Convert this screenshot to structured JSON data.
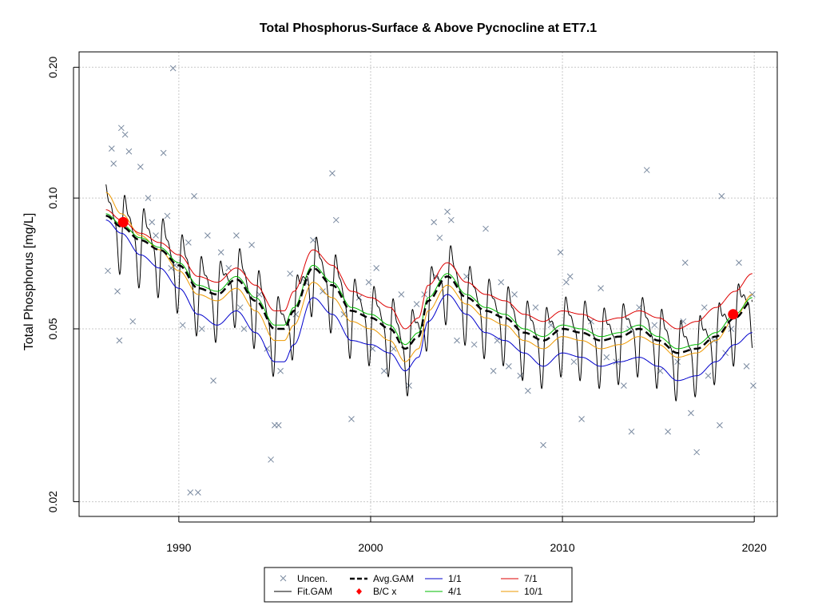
{
  "chart_data": {
    "type": "scatter",
    "title": "Total Phosphorus-Surface & Above Pycnocline at ET7.1",
    "xlabel": "",
    "ylabel": "Total Phosphorus [mg/L]",
    "y_scale": "log",
    "xlim": [
      1984.8,
      2021.2
    ],
    "ylim": [
      0.0185,
      0.217
    ],
    "x_ticks": [
      1990,
      2000,
      2010,
      2020
    ],
    "x_tick_labels": [
      "1990",
      "2000",
      "2010",
      "2020"
    ],
    "y_ticks": [
      0.02,
      0.05,
      0.1,
      0.2
    ],
    "y_tick_labels": [
      "0.02",
      "0.05",
      "0.10",
      "0.20"
    ],
    "grid": true,
    "legend": {
      "placement": "bottom-center",
      "entries": [
        {
          "label": "Uncen.",
          "kind": "x-marker",
          "color": "#7a8aa0"
        },
        {
          "label": "Fit.GAM",
          "kind": "line",
          "color": "#000000"
        },
        {
          "label": "Avg.GAM",
          "kind": "dashed-line",
          "color": "#000000"
        },
        {
          "label": "B/C x",
          "kind": "red-dot",
          "color": "#ff0000"
        },
        {
          "label": "1/1",
          "kind": "line",
          "color": "#0000cc"
        },
        {
          "label": "4/1",
          "kind": "line",
          "color": "#00bb00"
        },
        {
          "label": "7/1",
          "kind": "line",
          "color": "#dd0000"
        },
        {
          "label": "10/1",
          "kind": "line",
          "color": "#ee9900"
        }
      ]
    },
    "colors": {
      "uncensored": "#7a8aa0",
      "fit_gam": "#000000",
      "avg_gam": "#000000",
      "bc_points": "#ff0000",
      "jan": "#0000cc",
      "apr": "#00bb00",
      "jul": "#dd0000",
      "oct": "#ee9900",
      "grid": "#c8c8c8"
    },
    "avg_gam": {
      "x": [
        1986.2,
        1987,
        1988,
        1989,
        1990,
        1991,
        1992,
        1993,
        1994,
        1995,
        1995.5,
        1996,
        1997,
        1998,
        1999,
        2000,
        2001,
        2001.8,
        2002.5,
        2003,
        2004,
        2005,
        2006,
        2007,
        2008,
        2009,
        2010,
        2011,
        2012,
        2013,
        2014,
        2015,
        2016,
        2017,
        2018,
        2019,
        2019.9
      ],
      "y": [
        0.091,
        0.086,
        0.08,
        0.076,
        0.07,
        0.062,
        0.06,
        0.065,
        0.058,
        0.05,
        0.05,
        0.055,
        0.069,
        0.063,
        0.055,
        0.053,
        0.05,
        0.045,
        0.048,
        0.058,
        0.066,
        0.059,
        0.055,
        0.053,
        0.049,
        0.047,
        0.05,
        0.049,
        0.047,
        0.048,
        0.05,
        0.047,
        0.044,
        0.045,
        0.048,
        0.053,
        0.058
      ]
    },
    "monthly_fits": {
      "jan": {
        "name": "1/1",
        "y": [
          0.089,
          0.083,
          0.074,
          0.069,
          0.062,
          0.054,
          0.051,
          0.055,
          0.049,
          0.042,
          0.042,
          0.046,
          0.059,
          0.054,
          0.047,
          0.046,
          0.044,
          0.04,
          0.043,
          0.052,
          0.06,
          0.054,
          0.049,
          0.047,
          0.044,
          0.041,
          0.044,
          0.043,
          0.041,
          0.042,
          0.043,
          0.041,
          0.038,
          0.039,
          0.042,
          0.046,
          0.049
        ]
      },
      "apr": {
        "name": "4/1",
        "y": [
          0.092,
          0.087,
          0.081,
          0.077,
          0.071,
          0.063,
          0.061,
          0.066,
          0.059,
          0.051,
          0.051,
          0.056,
          0.07,
          0.064,
          0.056,
          0.054,
          0.051,
          0.046,
          0.049,
          0.059,
          0.067,
          0.06,
          0.056,
          0.054,
          0.05,
          0.048,
          0.051,
          0.05,
          0.048,
          0.049,
          0.051,
          0.048,
          0.045,
          0.046,
          0.049,
          0.054,
          0.059
        ]
      },
      "jul": {
        "name": "7/1",
        "y": [
          0.094,
          0.089,
          0.083,
          0.079,
          0.074,
          0.066,
          0.064,
          0.069,
          0.063,
          0.055,
          0.055,
          0.061,
          0.076,
          0.07,
          0.061,
          0.059,
          0.056,
          0.05,
          0.053,
          0.063,
          0.071,
          0.064,
          0.06,
          0.058,
          0.054,
          0.052,
          0.055,
          0.054,
          0.052,
          0.053,
          0.055,
          0.053,
          0.05,
          0.052,
          0.056,
          0.061,
          0.067
        ]
      },
      "oct": {
        "name": "10/1",
        "y": [
          0.103,
          0.092,
          0.082,
          0.076,
          0.068,
          0.06,
          0.058,
          0.062,
          0.055,
          0.047,
          0.047,
          0.051,
          0.064,
          0.059,
          0.052,
          0.05,
          0.047,
          0.042,
          0.045,
          0.055,
          0.063,
          0.057,
          0.053,
          0.051,
          0.047,
          0.045,
          0.048,
          0.047,
          0.045,
          0.046,
          0.048,
          0.046,
          0.043,
          0.044,
          0.047,
          0.053,
          0.06
        ]
      }
    },
    "fit_gam": {
      "seasonal_amplitude_log10": 0.085,
      "cycles_per_year": 1
    },
    "bc_points": [
      {
        "x": 1987.1,
        "y": 0.088
      },
      {
        "x": 2018.9,
        "y": 0.054
      }
    ],
    "uncensored": {
      "x": [
        1986.3,
        1986.5,
        1986.6,
        1986.8,
        1987.0,
        1987.2,
        1987.4,
        1987.6,
        1988.0,
        1988.4,
        1988.8,
        1989.2,
        1989.4,
        1989.8,
        1990.2,
        1990.5,
        1990.8,
        1991.2,
        1991.5,
        1991.8,
        1992.2,
        1992.6,
        1993.0,
        1993.4,
        1993.8,
        1994.2,
        1994.6,
        1995.0,
        1995.3,
        1995.8,
        1996.1,
        1996.6,
        1997.0,
        1997.5,
        1998.0,
        1998.2,
        1998.6,
        1999.0,
        1999.4,
        1999.9,
        2000.3,
        2000.7,
        2001.2,
        2001.6,
        2002.0,
        2002.4,
        2002.8,
        2003.3,
        2003.6,
        2004.0,
        2004.5,
        2005.0,
        2005.4,
        2006.0,
        2006.4,
        2006.8,
        2007.2,
        2007.8,
        2008.2,
        2008.6,
        2009.0,
        2009.4,
        2009.9,
        2010.2,
        2010.6,
        2011.0,
        2011.5,
        2012.0,
        2012.3,
        2012.8,
        2013.2,
        2013.6,
        2014.0,
        2014.4,
        2014.8,
        2015.1,
        2015.5,
        2016.0,
        2016.3,
        2016.7,
        2017.0,
        2017.4,
        2017.9,
        2018.2,
        2018.5,
        2018.8,
        2019.2,
        2019.6,
        2019.9,
        2019.95,
        1986.9,
        1988.6,
        1989.6,
        1990.6,
        1993.2,
        1995.2,
        2000.1,
        2003.4,
        2004.2,
        2006.6,
        2007.5,
        2010.4,
        2013.5,
        2016.4,
        2017.6,
        2018.3
      ],
      "y": [
        0.068,
        0.13,
        0.12,
        0.061,
        0.145,
        0.14,
        0.128,
        0.052,
        0.118,
        0.1,
        0.082,
        0.127,
        0.091,
        0.07,
        0.051,
        0.079,
        0.101,
        0.05,
        0.082,
        0.038,
        0.075,
        0.069,
        0.082,
        0.05,
        0.078,
        0.06,
        0.045,
        0.03,
        0.04,
        0.067,
        0.054,
        0.064,
        0.08,
        0.061,
        0.114,
        0.089,
        0.054,
        0.031,
        0.059,
        0.064,
        0.069,
        0.04,
        0.045,
        0.06,
        0.037,
        0.057,
        0.06,
        0.088,
        0.081,
        0.093,
        0.047,
        0.066,
        0.046,
        0.085,
        0.04,
        0.064,
        0.041,
        0.039,
        0.036,
        0.056,
        0.027,
        0.051,
        0.075,
        0.064,
        0.042,
        0.031,
        0.052,
        0.062,
        0.043,
        0.042,
        0.037,
        0.029,
        0.056,
        0.116,
        0.051,
        0.04,
        0.029,
        0.042,
        0.052,
        0.032,
        0.026,
        0.056,
        0.047,
        0.03,
        0.044,
        0.05,
        0.071,
        0.041,
        0.06,
        0.037,
        0.047,
        0.088,
        0.069,
        0.021,
        0.056,
        0.03,
        0.045,
        0.066,
        0.089,
        0.047,
        0.06,
        0.066,
        0.05,
        0.071,
        0.039,
        0.101
      ]
    },
    "outliers": {
      "x": [
        1989.7,
        1991.0,
        1994.8
      ],
      "y": [
        0.199,
        0.021,
        0.025
      ]
    }
  }
}
